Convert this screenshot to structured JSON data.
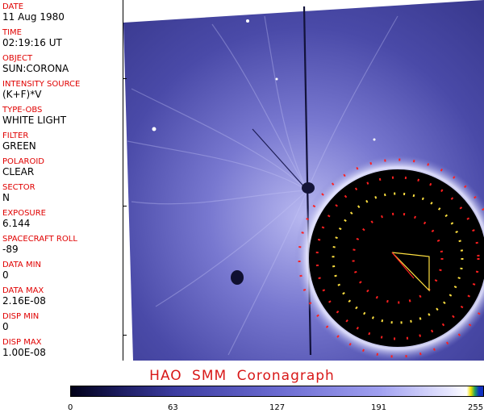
{
  "metadata": [
    {
      "label": "DATE",
      "value": "11 Aug 1980"
    },
    {
      "label": "TIME",
      "value": "02:19:16 UT"
    },
    {
      "label": "OBJECT",
      "value": "SUN:CORONA"
    },
    {
      "label": "INTENSITY SOURCE",
      "value": "(K+F)*V"
    },
    {
      "label": "TYPE-OBS",
      "value": "WHITE LIGHT"
    },
    {
      "label": "FILTER",
      "value": "GREEN"
    },
    {
      "label": "POLAROID",
      "value": "CLEAR"
    },
    {
      "label": "SECTOR",
      "value": "N"
    },
    {
      "label": "EXPOSURE",
      "value": "6.144"
    },
    {
      "label": "SPACECRAFT ROLL",
      "value": "-89"
    },
    {
      "label": "DATA MIN",
      "value": "0"
    },
    {
      "label": "DATA MAX",
      "value": "2.16E-08"
    },
    {
      "label": "DISP MIN",
      "value": "0"
    },
    {
      "label": "DISP MAX",
      "value": "1.00E-08"
    }
  ],
  "title": "HAO  SMM Coronagraph",
  "colorbar": {
    "ticks": [
      "0",
      "63",
      "127",
      "191",
      "255"
    ]
  },
  "colors": {
    "label": "#e00000",
    "title": "#d81818",
    "corona": "#4a4aa8",
    "occulter": "#000000",
    "marker_red": "#ff2020",
    "marker_yellow": "#ffe040"
  }
}
